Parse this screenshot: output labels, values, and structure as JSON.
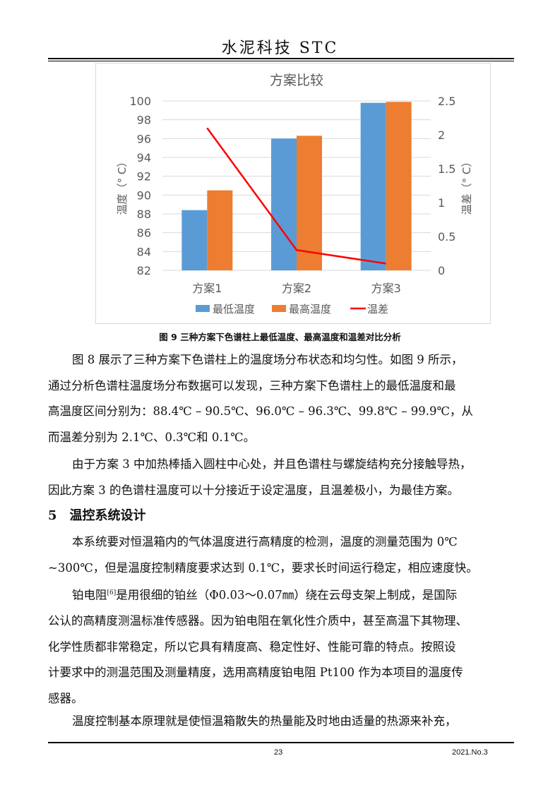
{
  "header": {
    "title": "水泥科技  STC"
  },
  "chart_data": {
    "type": "bar+line",
    "title": "方案比较",
    "categories": [
      "方案1",
      "方案2",
      "方案3"
    ],
    "series": [
      {
        "name": "最低温度",
        "type": "bar",
        "axis": "left",
        "color": "#5b9bd5",
        "values": [
          88.4,
          96.0,
          99.8
        ]
      },
      {
        "name": "最高温度",
        "type": "bar",
        "axis": "left",
        "color": "#ed7d31",
        "values": [
          90.5,
          96.3,
          99.9
        ]
      },
      {
        "name": "温差",
        "type": "line",
        "axis": "right",
        "color": "#ff0000",
        "values": [
          2.1,
          0.3,
          0.1
        ]
      }
    ],
    "ylabel": "温度（° C）",
    "y2label": "温差（° C）",
    "ylim": [
      82,
      100
    ],
    "yticks": [
      "82",
      "84",
      "86",
      "88",
      "90",
      "92",
      "94",
      "96",
      "98",
      "100"
    ],
    "y2lim": [
      0,
      2.5
    ],
    "y2ticks": [
      "0",
      "0.5",
      "1",
      "1.5",
      "2",
      "2.5"
    ],
    "grid": true,
    "legend": "bottom"
  },
  "caption": "图 9  三种方案下色谱柱上最低温度、最高温度和温差对比分析",
  "para1": [
    "图 8 展示了三种方案下色谱柱上的温度场分布状态和均匀性。如图 9 所示，",
    "通过分析色谱柱温度场分布数据可以发现，三种方案下色谱柱上的最低温度和最",
    "高温度区间分别为：88.4℃ – 90.5℃、96.0℃ – 96.3℃、99.8℃ – 99.9℃，从",
    "而温差分别为 2.1℃、0.3℃和 0.1℃。"
  ],
  "para2": [
    "由于方案 3 中加热棒插入圆柱中心处，并且色谱柱与螺旋结构充分接触导热，",
    "因此方案 3 的色谱柱温度可以十分接近于设定温度，且温差极小，为最佳方案。"
  ],
  "section": "5　温控系统设计",
  "para3": [
    "本系统要对恒温箱内的气体温度进行高精度的检测，温度的测量范围为 0℃",
    "~300℃，但是温度控制精度要求达到 0.1℃，要求长时间运行稳定，相应速度快。"
  ],
  "para4": {
    "lead": "铂电阻",
    "ref": "[6]",
    "rest": "是用很细的铂丝（Φ0.03～0.07㎜）绕在云母支架上制成，是国际",
    "lines": [
      "公认的高精度测温标准传感器。因为铂电阻在氧化性介质中，甚至高温下其物理、",
      "化学性质都非常稳定，所以它具有精度高、稳定性好、性能可靠的特点。按照设",
      "计要求中的测温范围及测量精度，选用高精度铂电阻 Pt100 作为本项目的温度传",
      "感器。"
    ]
  },
  "para5": [
    "温度控制基本原理就是使恒温箱散失的热量能及时地由适量的热源来补充，"
  ],
  "footer": {
    "page": "23",
    "issue": "2021.No.3"
  }
}
